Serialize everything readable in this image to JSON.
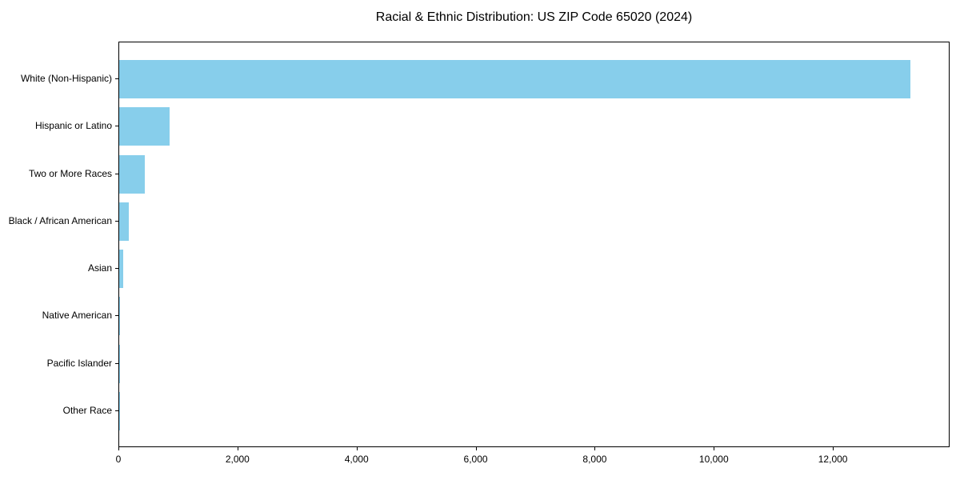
{
  "chart_data": {
    "type": "bar",
    "orientation": "horizontal",
    "title": "Racial & Ethnic Distribution: US ZIP Code 65020 (2024)",
    "categories": [
      "White (Non-Hispanic)",
      "Hispanic or Latino",
      "Two or More Races",
      "Black / African American",
      "Asian",
      "Native American",
      "Pacific Islander",
      "Other Race"
    ],
    "values": [
      13290,
      850,
      435,
      160,
      70,
      10,
      5,
      5
    ],
    "xlabel": "",
    "ylabel": "",
    "xlim": [
      0,
      13960
    ],
    "x_ticks": [
      0,
      2000,
      4000,
      6000,
      8000,
      10000,
      12000
    ],
    "x_tick_labels": [
      "0",
      "2,000",
      "4,000",
      "6,000",
      "8,000",
      "10,000",
      "12,000"
    ],
    "bar_color": "#87CEEB",
    "background_color": "#ffffff",
    "spine_color": "#000000",
    "grid": false,
    "legend": "none",
    "category_order": "first-at-top"
  }
}
